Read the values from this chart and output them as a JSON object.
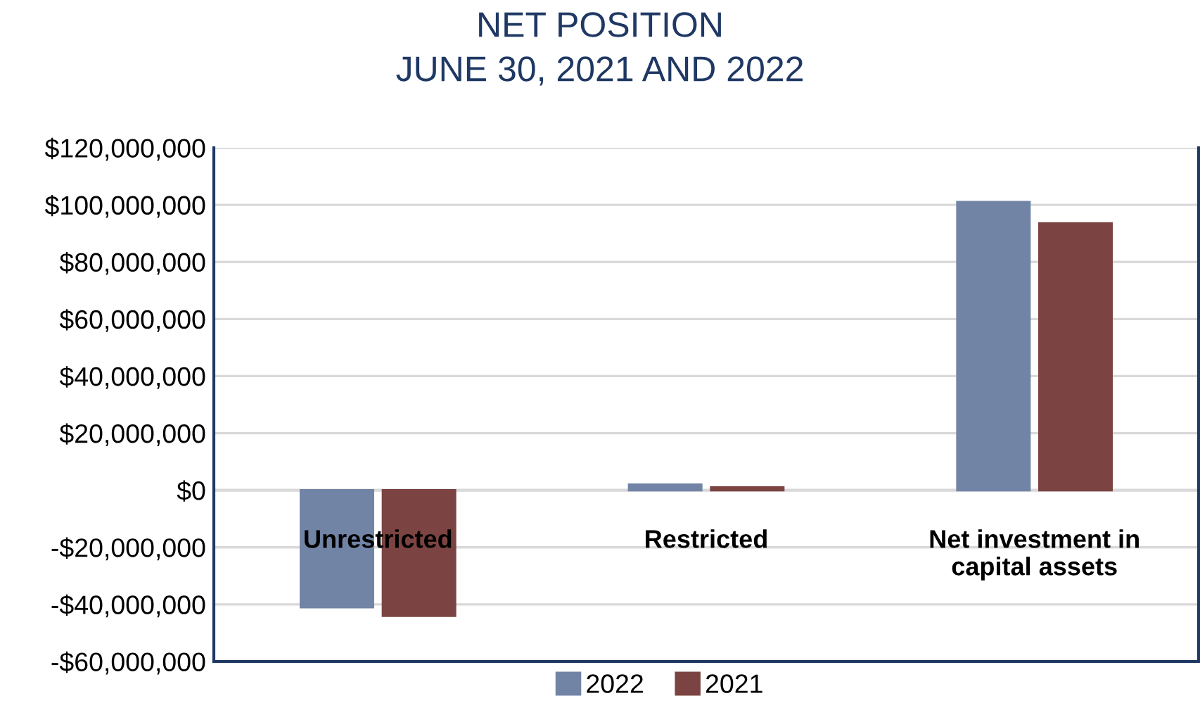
{
  "chart_data": {
    "type": "bar",
    "title": "NET POSITION\nJUNE 30, 2021 AND 2022",
    "categories": [
      "Unrestricted",
      "Restricted",
      "Net investment in\ncapital assets"
    ],
    "series": [
      {
        "name": "2022",
        "color": "#7284a6",
        "values": [
          -41000000,
          2000000,
          101000000
        ]
      },
      {
        "name": "2021",
        "color": "#7b4442",
        "values": [
          -44000000,
          1000000,
          93500000
        ]
      }
    ],
    "ylim": [
      -60000000,
      120000000
    ],
    "yticks": [
      {
        "value": -60000000,
        "label": "-$60,000,000"
      },
      {
        "value": -40000000,
        "label": "-$40,000,000"
      },
      {
        "value": -20000000,
        "label": "-$20,000,000"
      },
      {
        "value": 0,
        "label": "$0"
      },
      {
        "value": 20000000,
        "label": "$20,000,000"
      },
      {
        "value": 40000000,
        "label": "$40,000,000"
      },
      {
        "value": 60000000,
        "label": "$60,000,000"
      },
      {
        "value": 80000000,
        "label": "$80,000,000"
      },
      {
        "value": 100000000,
        "label": "$100,000,000"
      },
      {
        "value": 120000000,
        "label": "$120,000,000"
      }
    ],
    "grid": "y",
    "legend": "bottom"
  }
}
